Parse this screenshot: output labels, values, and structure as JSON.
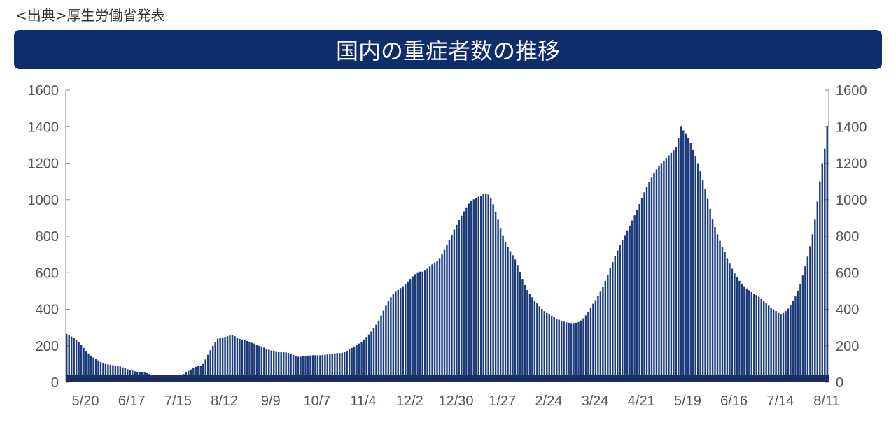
{
  "source_text": "<出典>厚生労働省発表",
  "chart_data": {
    "type": "bar",
    "title": "国内の重症者数の推移",
    "xlabel": "",
    "ylabel": "",
    "ylim": [
      0,
      1600
    ],
    "yticks": [
      0,
      200,
      400,
      600,
      800,
      1000,
      1200,
      1400,
      1600
    ],
    "xtick_labels": [
      "5/20",
      "6/17",
      "7/15",
      "8/12",
      "9/9",
      "10/7",
      "11/4",
      "12/2",
      "12/30",
      "1/27",
      "2/24",
      "3/24",
      "4/21",
      "5/19",
      "6/16",
      "7/14",
      "8/11"
    ],
    "grid": false,
    "bar_color": "#1a3a7a",
    "series": [
      {
        "values": [
          265,
          258,
          250,
          242,
          232,
          220,
          205,
          188,
          172,
          158,
          146,
          136,
          128,
          120,
          112,
          106,
          101,
          98,
          96,
          94,
          92,
          90,
          86,
          82,
          78,
          72,
          68,
          64,
          60,
          58,
          57,
          56,
          54,
          50,
          46,
          42,
          38,
          35,
          33,
          32,
          32,
          32,
          33,
          33,
          33,
          34,
          36,
          40,
          46,
          54,
          62,
          70,
          78,
          85,
          88,
          90,
          100,
          125,
          150,
          175,
          200,
          222,
          238,
          244,
          246,
          248,
          252,
          256,
          258,
          252,
          244,
          238,
          234,
          230,
          226,
          222,
          216,
          212,
          206,
          200,
          196,
          190,
          184,
          178,
          174,
          172,
          170,
          168,
          167,
          165,
          163,
          160,
          156,
          150,
          144,
          140,
          140,
          142,
          144,
          146,
          147,
          148,
          148,
          148,
          148,
          149,
          150,
          152,
          154,
          156,
          158,
          160,
          160,
          162,
          166,
          172,
          180,
          188,
          196,
          204,
          212,
          222,
          234,
          248,
          262,
          278,
          295,
          315,
          338,
          365,
          392,
          420,
          445,
          466,
          482,
          496,
          506,
          516,
          526,
          538,
          552,
          566,
          580,
          592,
          602,
          606,
          606,
          612,
          622,
          634,
          646,
          656,
          666,
          680,
          700,
          725,
          752,
          780,
          808,
          836,
          862,
          888,
          912,
          936,
          958,
          978,
          992,
          1002,
          1010,
          1016,
          1022,
          1030,
          1034,
          1028,
          1008,
          975,
          935,
          890,
          845,
          805,
          770,
          742,
          718,
          696,
          672,
          642,
          605,
          566,
          532,
          505,
          484,
          466,
          448,
          432,
          416,
          402,
          390,
          380,
          372,
          364,
          356,
          348,
          342,
          336,
          332,
          328,
          326,
          324,
          324,
          326,
          330,
          338,
          350,
          366,
          386,
          408,
          430,
          450,
          472,
          496,
          524,
          556,
          590,
          624,
          658,
          690,
          722,
          752,
          780,
          806,
          832,
          858,
          886,
          914,
          944,
          976,
          1008,
          1040,
          1070,
          1098,
          1124,
          1146,
          1166,
          1184,
          1200,
          1214,
          1228,
          1242,
          1256,
          1272,
          1290,
          1340,
          1400,
          1380,
          1360,
          1340,
          1310,
          1275,
          1240,
          1200,
          1160,
          1110,
          1060,
          1005,
          950,
          895,
          850,
          810,
          775,
          742,
          712,
          680,
          650,
          622,
          596,
          574,
          556,
          540,
          526,
          514,
          504,
          494,
          486,
          478,
          468,
          456,
          444,
          432,
          420,
          410,
          400,
          390,
          380,
          375,
          380,
          390,
          404,
          422,
          444,
          470,
          502,
          540,
          585,
          635,
          688,
          745,
          810,
          890,
          990,
          1100,
          1200,
          1280,
          1400
        ]
      }
    ]
  }
}
